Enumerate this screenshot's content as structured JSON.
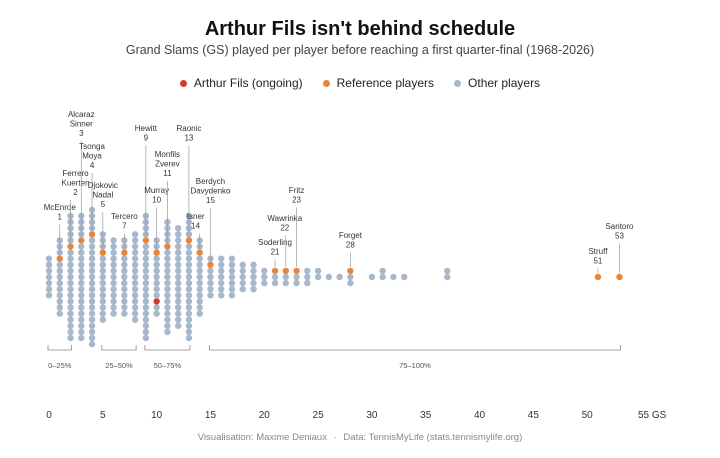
{
  "title": "Arthur Fils isn't behind schedule",
  "subtitle": "Grand Slams (GS) played per player before reaching a first quarter-final (1968-2026)",
  "legend": [
    {
      "label": "Arthur Fils (ongoing)",
      "color": "#d63a2f"
    },
    {
      "label": "Reference players",
      "color": "#e8853a"
    },
    {
      "label": "Other players",
      "color": "#a7b8cc"
    }
  ],
  "footer": {
    "credit": "Visualisation: Maxime Deniaux",
    "sep": "·",
    "source": "Data: TennisMyLife (stats.tennismylife.org)"
  },
  "chart_data": {
    "type": "dot",
    "x_label_unit": "GS",
    "xlim": [
      0,
      55
    ],
    "x_ticks": [
      0,
      5,
      10,
      15,
      20,
      25,
      30,
      35,
      40,
      45,
      50,
      55
    ],
    "x_tick_labels": [
      "0",
      "5",
      "10",
      "15",
      "20",
      "25",
      "30",
      "35",
      "40",
      "45",
      "50",
      "55 GS"
    ],
    "columns": [
      {
        "x": 0,
        "count": 7
      },
      {
        "x": 1,
        "count": 13
      },
      {
        "x": 2,
        "count": 21
      },
      {
        "x": 3,
        "count": 21
      },
      {
        "x": 4,
        "count": 23
      },
      {
        "x": 5,
        "count": 15
      },
      {
        "x": 6,
        "count": 13
      },
      {
        "x": 7,
        "count": 13
      },
      {
        "x": 8,
        "count": 15
      },
      {
        "x": 9,
        "count": 21
      },
      {
        "x": 10,
        "count": 13
      },
      {
        "x": 11,
        "count": 19
      },
      {
        "x": 12,
        "count": 17
      },
      {
        "x": 13,
        "count": 21
      },
      {
        "x": 14,
        "count": 13
      },
      {
        "x": 15,
        "count": 7
      },
      {
        "x": 16,
        "count": 7
      },
      {
        "x": 17,
        "count": 7
      },
      {
        "x": 18,
        "count": 5
      },
      {
        "x": 19,
        "count": 5
      },
      {
        "x": 20,
        "count": 3
      },
      {
        "x": 21,
        "count": 3
      },
      {
        "x": 22,
        "count": 3
      },
      {
        "x": 23,
        "count": 3
      },
      {
        "x": 24,
        "count": 3
      },
      {
        "x": 25,
        "count": 2
      },
      {
        "x": 26,
        "count": 1
      },
      {
        "x": 27,
        "count": 1
      },
      {
        "x": 28,
        "count": 3
      },
      {
        "x": 30,
        "count": 1
      },
      {
        "x": 31,
        "count": 2
      },
      {
        "x": 32,
        "count": 1
      },
      {
        "x": 33,
        "count": 1
      },
      {
        "x": 37,
        "count": 2
      },
      {
        "x": 51,
        "count": 1
      },
      {
        "x": 53,
        "count": 1
      }
    ],
    "arthur_fils": {
      "x": 10,
      "row": -4
    },
    "reference_players": [
      {
        "x": 1,
        "row": 3,
        "label": [
          "McEnroe",
          "1"
        ]
      },
      {
        "x": 2,
        "row": 5,
        "label": [
          "Ferrero",
          "Kuerten",
          "2"
        ]
      },
      {
        "x": 3,
        "row": 6,
        "label": [
          "Alcaraz",
          "Sinner",
          "3"
        ]
      },
      {
        "x": 4,
        "row": 7,
        "label": [
          "Tsonga",
          "Moya",
          "4"
        ]
      },
      {
        "x": 5,
        "row": 4,
        "label": [
          "Djokovic",
          "Nadal",
          "5"
        ]
      },
      {
        "x": 7,
        "row": 4,
        "label": [
          "Tercero",
          "7"
        ]
      },
      {
        "x": 9,
        "row": 6,
        "label": [
          "Hewitt",
          "9"
        ]
      },
      {
        "x": 10,
        "row": 4,
        "label": [
          "Murray",
          "10"
        ]
      },
      {
        "x": 11,
        "row": 5,
        "label": [
          "Monfils",
          "Zverev",
          "11"
        ]
      },
      {
        "x": 13,
        "row": 6,
        "label": [
          "Raonic",
          "13"
        ]
      },
      {
        "x": 14,
        "row": 4,
        "label": [
          "Isner",
          "14"
        ]
      },
      {
        "x": 15,
        "row": 2,
        "label": [
          "Berdych",
          "Davydenko",
          "15"
        ]
      },
      {
        "x": 21,
        "row": 1,
        "label": [
          "Soderling",
          "21"
        ]
      },
      {
        "x": 22,
        "row": 1,
        "label": [
          "Wawrinka",
          "22"
        ]
      },
      {
        "x": 23,
        "row": 1,
        "label": [
          "Fritz",
          "23"
        ]
      },
      {
        "x": 28,
        "row": 1,
        "label": [
          "Forget",
          "28"
        ]
      },
      {
        "x": 51,
        "row": 0,
        "label": [
          "Struff",
          "51"
        ]
      },
      {
        "x": 53,
        "row": 0,
        "label": [
          "Santoro",
          "53"
        ]
      }
    ],
    "quartile_groups": [
      {
        "label": "0–25%",
        "from": 0,
        "to": 2
      },
      {
        "label": "25–50%",
        "from": 5,
        "to": 8
      },
      {
        "label": "50–75%",
        "from": 9,
        "to": 13
      },
      {
        "label": "75–100%",
        "from": 15,
        "to": 53
      }
    ]
  }
}
